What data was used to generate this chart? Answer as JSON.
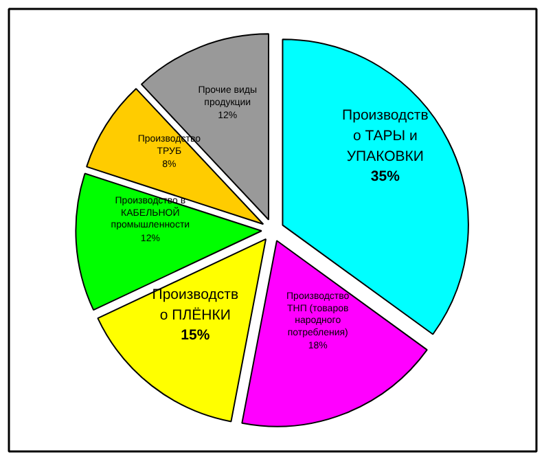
{
  "chart_data": {
    "type": "pie",
    "categories": [
      "Производств\nо ТАРЫ и\nУПАКОВКИ",
      "Производство\nТНП (товаров\nнародного\nпотребления)",
      "Производств\nо ПЛЁНКИ",
      "Производство в\nКАБЕЛЬНОЙ\nпромышленности",
      "Производство\nТРУБ",
      "Прочие виды\nпродукции"
    ],
    "values": [
      35,
      18,
      15,
      12,
      8,
      12
    ],
    "value_labels": [
      "35%",
      "18%",
      "15%",
      "12%",
      "8%",
      "12%"
    ],
    "colors": [
      "#00ffff",
      "#ff00ff",
      "#ffff00",
      "#00ff00",
      "#ffcc00",
      "#999999"
    ]
  }
}
